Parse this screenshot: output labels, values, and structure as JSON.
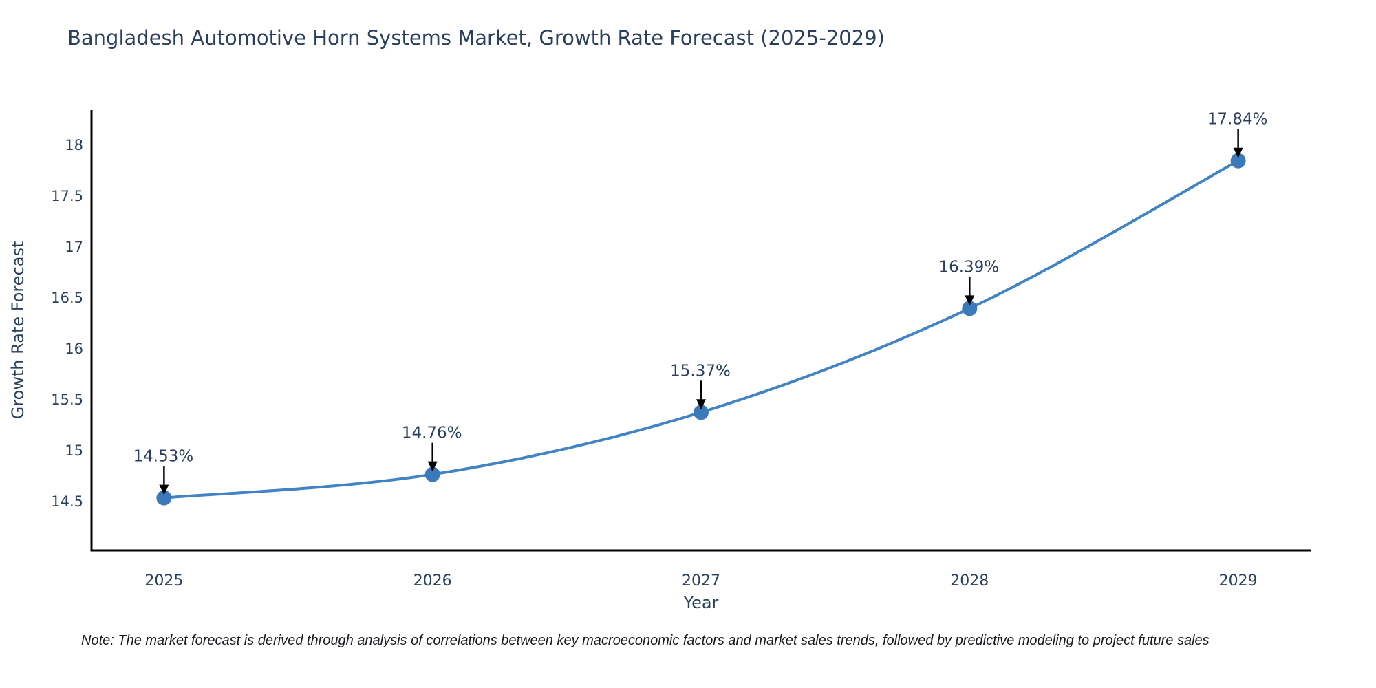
{
  "title": "Bangladesh Automotive Horn Systems Market, Growth Rate Forecast (2025-2029)",
  "note": "Note: The market forecast is derived through analysis of correlations between key macroeconomic factors and market sales trends, followed by predictive modeling to project future sales",
  "colors": {
    "line": "#4183c4",
    "marker": "#3a79ba",
    "axis": "#000000",
    "text": "#2a3f5f",
    "arrow": "#000000",
    "note_text": "#16191e",
    "background": "#ffffff"
  },
  "chart_data": {
    "type": "line",
    "title": "Bangladesh Automotive Horn Systems Market, Growth Rate Forecast (2025-2029)",
    "xlabel": "Year",
    "ylabel": "Growth Rate Forecast",
    "x": [
      2025,
      2026,
      2027,
      2028,
      2029
    ],
    "values": [
      14.53,
      14.76,
      15.37,
      16.39,
      17.84
    ],
    "point_labels": [
      "14.53%",
      "14.76%",
      "15.37%",
      "16.39%",
      "17.84%"
    ],
    "xtick_labels": [
      "2025",
      "2026",
      "2027",
      "2028",
      "2029"
    ],
    "yticks": [
      14.5,
      15,
      15.5,
      16,
      16.5,
      17,
      17.5,
      18
    ],
    "ytick_labels": [
      "14.5",
      "15",
      "15.5",
      "16",
      "16.5",
      "17",
      "17.5",
      "18"
    ],
    "xlim": [
      2024.73,
      2029.27
    ],
    "ylim": [
      14.014,
      18.338
    ],
    "grid": false,
    "legend": "none",
    "line_shape": "spline",
    "marker": "circle",
    "annotation_arrows": true
  }
}
